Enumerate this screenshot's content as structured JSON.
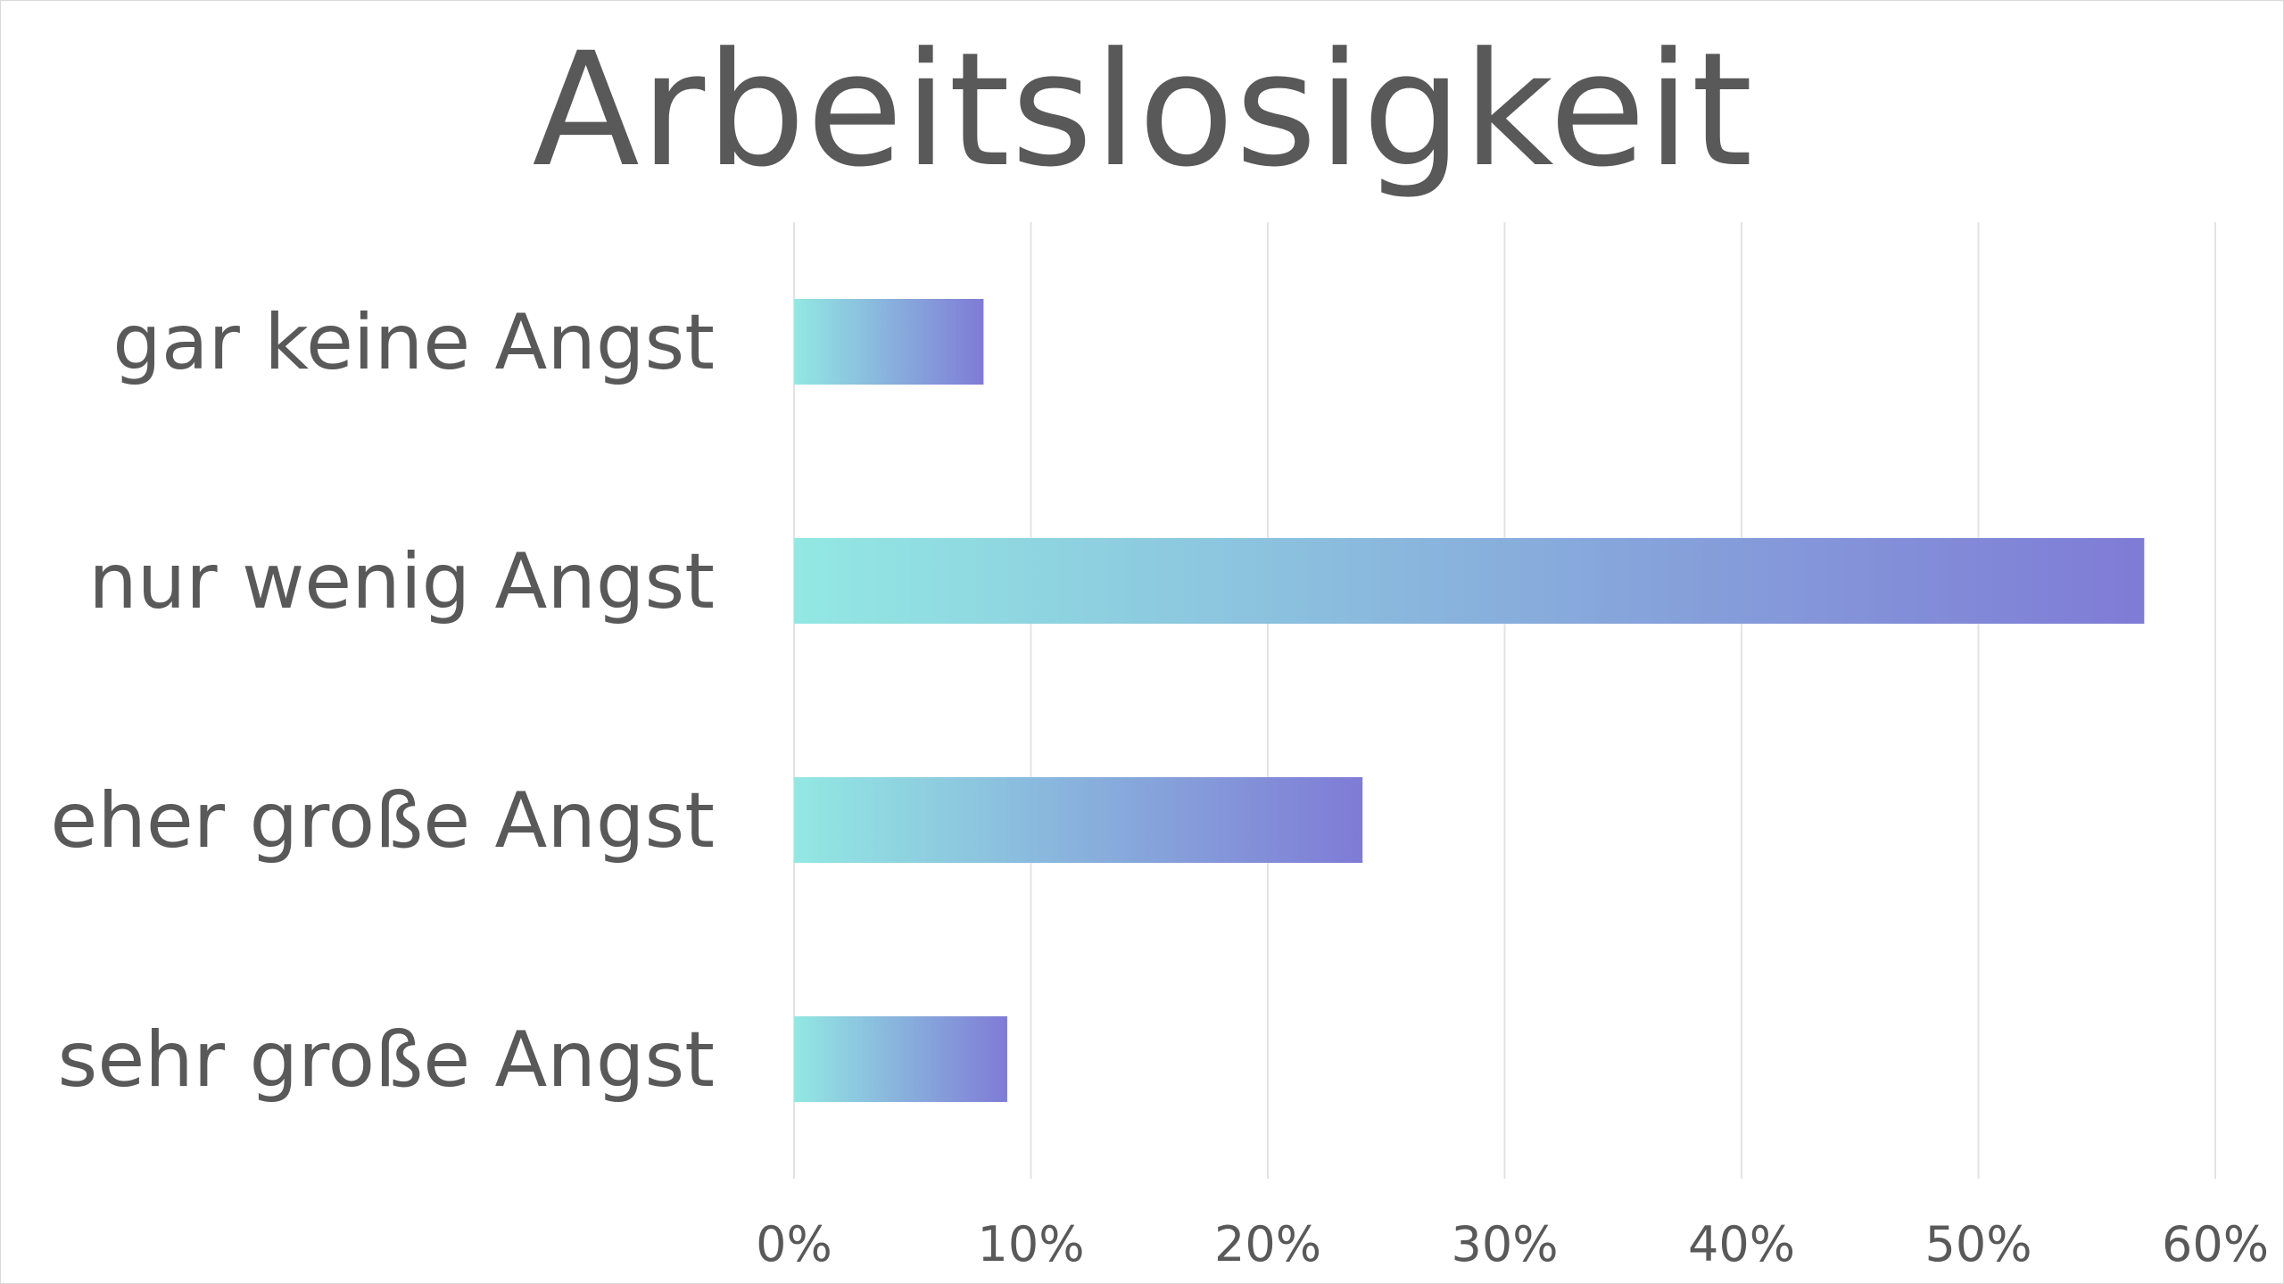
{
  "chart_data": {
    "type": "bar",
    "orientation": "horizontal",
    "title": "Arbeitslosigkeit",
    "categories": [
      "gar keine Angst",
      "nur wenig Angst",
      "eher große Angst",
      "sehr große Angst"
    ],
    "values": [
      8,
      57,
      24,
      9
    ],
    "xlim": [
      0,
      60
    ],
    "xticks": [
      "0%",
      "10%",
      "20%",
      "30%",
      "40%",
      "50%",
      "60%"
    ],
    "grid": true,
    "legend": "none",
    "colors": {
      "bar_gradient_start": "#92E8E3",
      "bar_gradient_end": "#7F7BD6",
      "text": "#595959",
      "grid": "#E3E3E3"
    }
  }
}
